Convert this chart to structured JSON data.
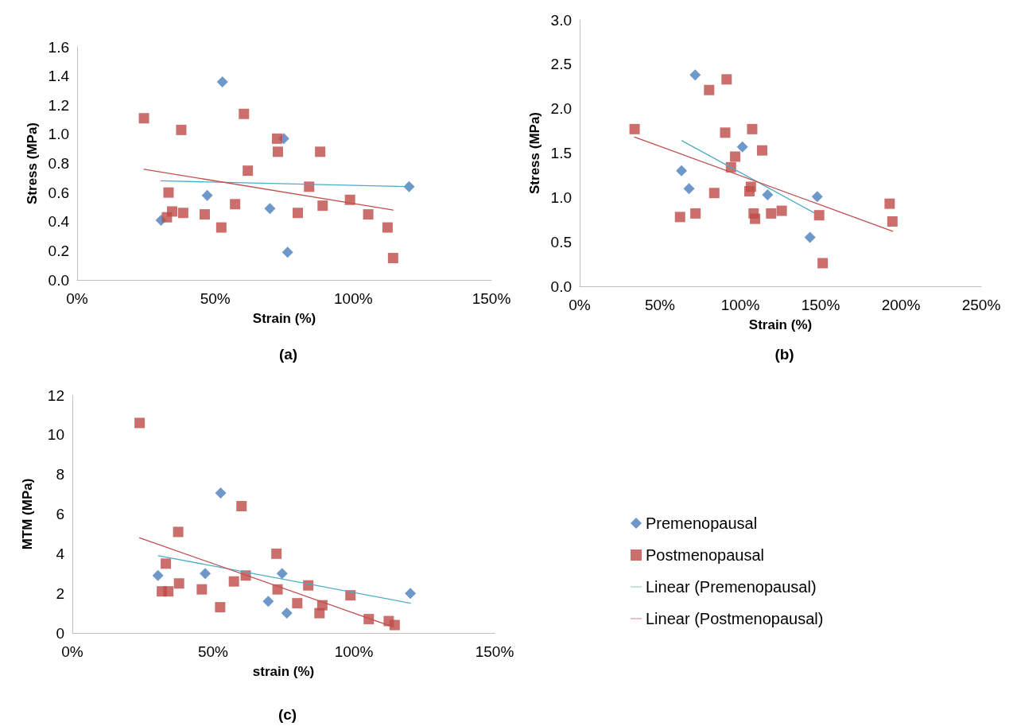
{
  "chart_data": [
    {
      "type": "scatter",
      "title": "(a)",
      "xlabel": "Strain (%)",
      "ylabel": "Stress (MPa)",
      "xlim": [
        0,
        150
      ],
      "xticks": [
        {
          "value": 0,
          "label": "0%"
        },
        {
          "value": 50,
          "label": "50%"
        },
        {
          "value": 100,
          "label": "100%"
        },
        {
          "value": 150,
          "label": "150%"
        }
      ],
      "ylim": [
        0,
        1.6
      ],
      "yticks": [
        {
          "value": 0,
          "label": "0.0"
        },
        0.2,
        0.4,
        0.6,
        0.8,
        {
          "value": 1,
          "label": "1.0"
        },
        1.2,
        1.4,
        1.6
      ],
      "grid": false,
      "legend": false,
      "series": [
        {
          "type": "scatter",
          "marker": "diamond",
          "color": "#4a7ebb",
          "x": [
            30.4,
            52.6,
            47.1,
            69.8,
            74.8,
            76.2,
            120.2
          ],
          "values": [
            0.41,
            1.36,
            0.58,
            0.49,
            0.97,
            0.19,
            0.64
          ]
        },
        {
          "type": "scatter",
          "marker": "square",
          "color": "#be4b48",
          "x": [
            24.2,
            37.7,
            33.1,
            32.5,
            34.4,
            38.4,
            46.2,
            52.2,
            57.2,
            60.4,
            61.8,
            72.4,
            72.7,
            79.9,
            84.0,
            88.0,
            88.9,
            98.8,
            105.4,
            112.4,
            114.4
          ],
          "values": [
            1.11,
            1.03,
            0.6,
            0.43,
            0.47,
            0.46,
            0.45,
            0.36,
            0.52,
            1.14,
            0.75,
            0.97,
            0.88,
            0.46,
            0.64,
            0.88,
            0.51,
            0.55,
            0.45,
            0.36,
            0.15
          ]
        },
        {
          "type": "line",
          "marker": "none",
          "line_style": "solid",
          "color": "#4bacc6",
          "x": [
            30.4,
            120.2
          ],
          "values": [
            0.68,
            0.64
          ]
        },
        {
          "type": "line",
          "marker": "none",
          "line_style": "solid",
          "color": "#c0504d",
          "x": [
            24.2,
            114.4
          ],
          "values": [
            0.76,
            0.48
          ]
        }
      ]
    },
    {
      "type": "scatter",
      "title": "(b)",
      "xlabel": "Strain (%)",
      "ylabel": "Stress (MPa)",
      "xlim": [
        0,
        250
      ],
      "xticks": [
        {
          "value": 0,
          "label": "0%"
        },
        {
          "value": 50,
          "label": "50%"
        },
        {
          "value": 100,
          "label": "100%"
        },
        {
          "value": 150,
          "label": "150%"
        },
        {
          "value": 200,
          "label": "200%"
        },
        {
          "value": 250,
          "label": "250%"
        }
      ],
      "ylim": [
        0,
        3
      ],
      "yticks": [
        {
          "value": 0,
          "label": "0.0"
        },
        0.5,
        {
          "value": 1,
          "label": "1.0"
        },
        1.5,
        {
          "value": 2,
          "label": "2.0"
        },
        2.5,
        {
          "value": 3,
          "label": "3.0"
        }
      ],
      "grid": false,
      "legend": false,
      "series": [
        {
          "type": "scatter",
          "marker": "diamond",
          "color": "#4a7ebb",
          "x": [
            71.9,
            63.4,
            68.1,
            101.3,
            117.0,
            147.9,
            143.4
          ],
          "values": [
            2.38,
            1.3,
            1.1,
            1.57,
            1.03,
            1.01,
            0.55
          ]
        },
        {
          "type": "scatter",
          "marker": "square",
          "color": "#be4b48",
          "x": [
            34.2,
            80.6,
            91.5,
            90.6,
            107.4,
            113.6,
            96.8,
            94.2,
            106.6,
            105.7,
            83.8,
            62.5,
            72.1,
            108.3,
            109.2,
            119.2,
            125.8,
            149.1,
            151.3,
            193.0,
            194.7
          ],
          "values": [
            1.77,
            2.21,
            2.33,
            1.73,
            1.77,
            1.53,
            1.46,
            1.34,
            1.12,
            1.07,
            1.05,
            0.78,
            0.82,
            0.82,
            0.76,
            0.82,
            0.85,
            0.8,
            0.26,
            0.93,
            0.73
          ]
        },
        {
          "type": "line",
          "marker": "none",
          "line_style": "solid",
          "color": "#4bacc6",
          "x": [
            63.6,
            145.7
          ],
          "values": [
            1.64,
            0.83
          ]
        },
        {
          "type": "line",
          "marker": "none",
          "line_style": "solid",
          "color": "#c0504d",
          "x": [
            34.2,
            194.9
          ],
          "values": [
            1.68,
            0.62
          ]
        }
      ]
    },
    {
      "type": "scatter",
      "title": "(c)",
      "xlabel": "strain (%)",
      "ylabel": "MTM (MPa)",
      "xlim": [
        0,
        150
      ],
      "xticks": [
        {
          "value": 0,
          "label": "0%"
        },
        {
          "value": 50,
          "label": "50%"
        },
        {
          "value": 100,
          "label": "100%"
        },
        {
          "value": 150,
          "label": "150%"
        }
      ],
      "ylim": [
        0,
        12
      ],
      "yticks": [
        0,
        2,
        4,
        6,
        8,
        10,
        12
      ],
      "grid": false,
      "legend": "right",
      "series": [
        {
          "type": "scatter",
          "name": "Premenopausal",
          "marker": "diamond",
          "color": "#4a7ebb",
          "x": [
            30.4,
            52.7,
            47.2,
            69.6,
            74.5,
            76.2,
            120.1
          ],
          "values": [
            2.9,
            7.06,
            3.0,
            1.6,
            3.0,
            1.0,
            2.0
          ]
        },
        {
          "type": "scatter",
          "name": "Postmenopausal",
          "marker": "square",
          "color": "#be4b48",
          "x": [
            23.9,
            37.6,
            33.2,
            31.8,
            34.1,
            37.9,
            46.0,
            52.5,
            57.4,
            60.1,
            61.6,
            72.5,
            72.9,
            79.9,
            83.8,
            87.8,
            88.8,
            98.8,
            105.3,
            112.4,
            114.5
          ],
          "values": [
            10.6,
            5.1,
            3.5,
            2.1,
            2.1,
            2.5,
            2.2,
            1.3,
            2.6,
            6.4,
            2.9,
            4.0,
            2.2,
            1.5,
            2.4,
            1.0,
            1.4,
            1.9,
            0.7,
            0.6,
            0.4
          ]
        },
        {
          "type": "line",
          "name": "Linear (Premenopausal)",
          "marker": "none",
          "line_style": "solid",
          "color": "#4bacc6",
          "x": [
            30.6,
            120.1
          ],
          "values": [
            3.9,
            1.5
          ]
        },
        {
          "type": "line",
          "name": "Linear (Postmenopausal)",
          "marker": "none",
          "line_style": "solid",
          "color": "#c0504d",
          "x": [
            23.9,
            114.1
          ],
          "values": [
            4.8,
            0.3
          ]
        }
      ]
    }
  ]
}
